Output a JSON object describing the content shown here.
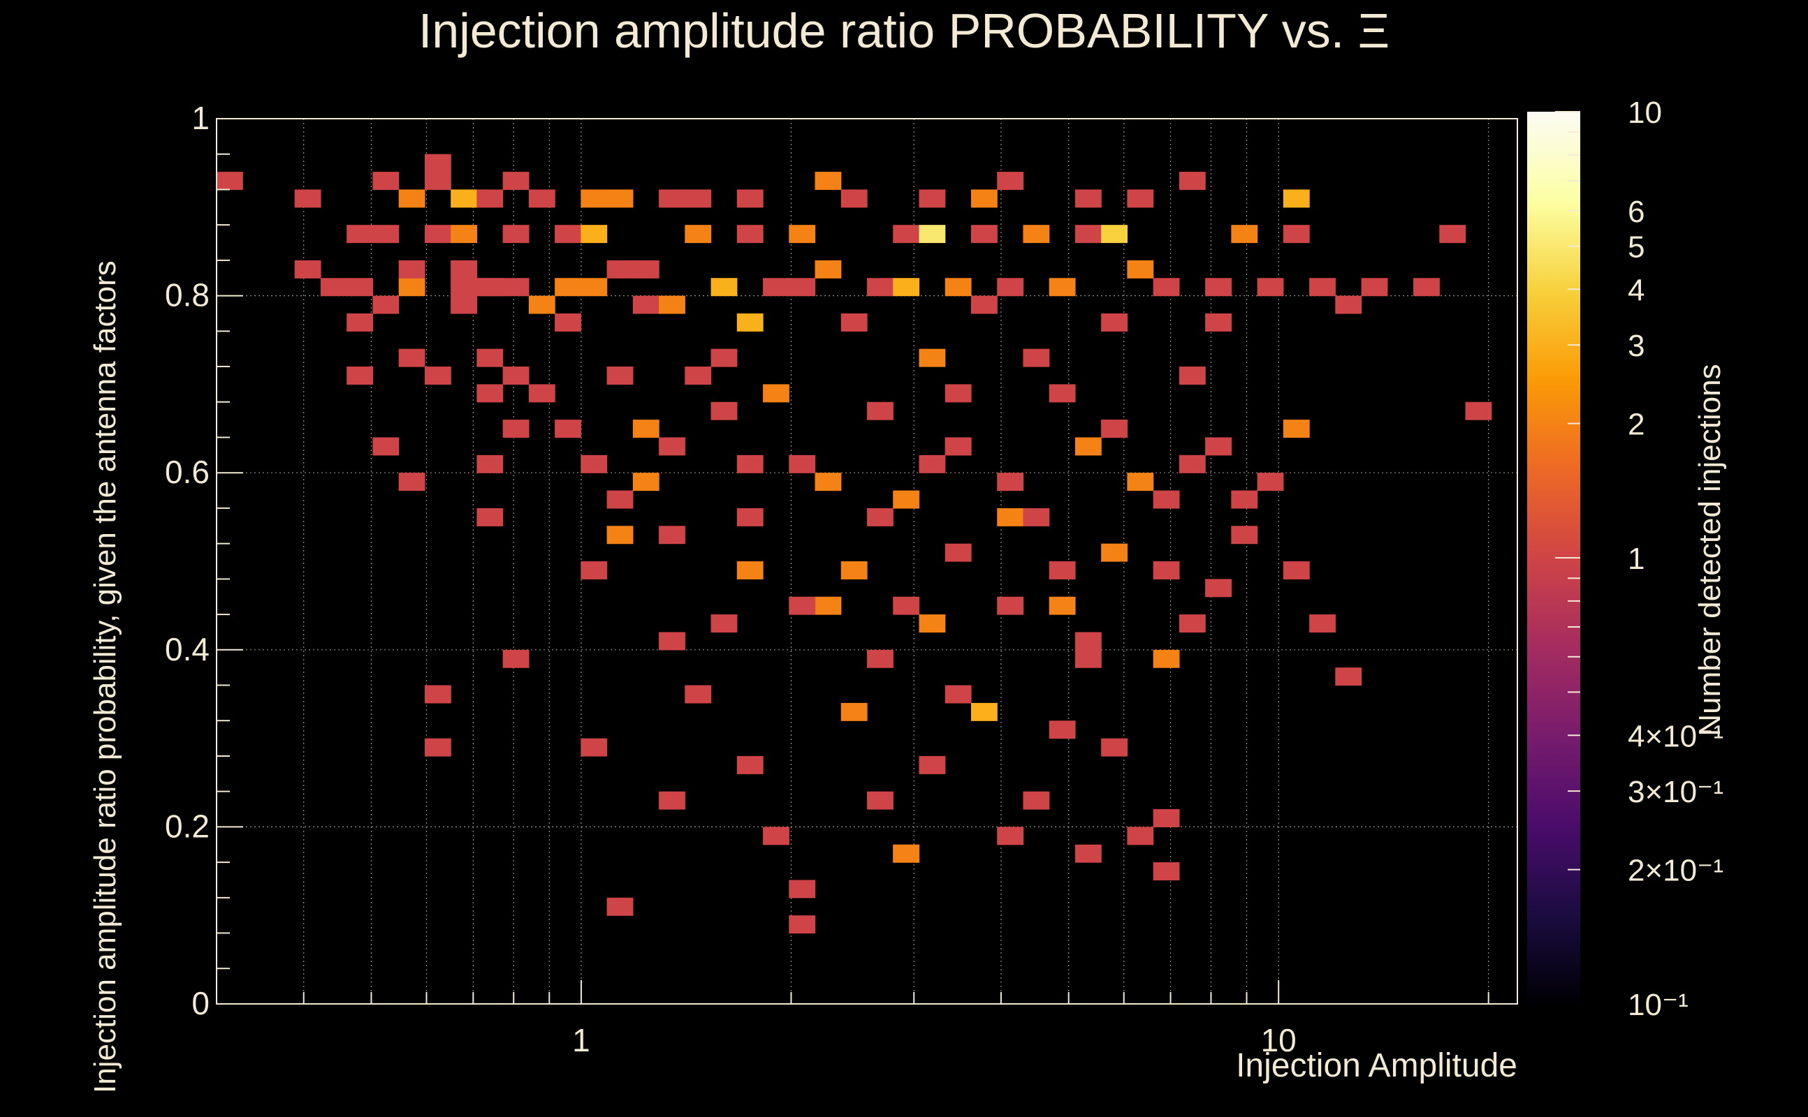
{
  "chart_data": {
    "type": "heatmap",
    "title": "Injection amplitude ratio PROBABILITY vs.  Ξ",
    "xlabel": "Injection Amplitude",
    "ylabel": "Injection amplitude ratio probability, given the antenna factors",
    "colorbar_label": "Number detected injections",
    "x_scale": "log",
    "x_range": [
      0.3,
      22
    ],
    "y_range": [
      0,
      1
    ],
    "x_tick_labels": [
      {
        "value": 1,
        "label": "1"
      },
      {
        "value": 10,
        "label": "10"
      }
    ],
    "y_tick_labels": [
      {
        "value": 0,
        "label": "0"
      },
      {
        "value": 0.2,
        "label": "0.2"
      },
      {
        "value": 0.4,
        "label": "0.4"
      },
      {
        "value": 0.6,
        "label": "0.6"
      },
      {
        "value": 0.8,
        "label": "0.8"
      },
      {
        "value": 1,
        "label": "1"
      }
    ],
    "z_scale": "log",
    "z_range": [
      0.1,
      10
    ],
    "z_tick_labels": [
      {
        "value": 10,
        "label": "10"
      },
      {
        "value": 6,
        "label": "6"
      },
      {
        "value": 5,
        "label": "5"
      },
      {
        "value": 4,
        "label": "4"
      },
      {
        "value": 3,
        "label": "3"
      },
      {
        "value": 2,
        "label": "2"
      },
      {
        "value": 1,
        "label": "1"
      },
      {
        "value": 0.4,
        "label": "4×10⁻¹"
      },
      {
        "value": 0.3,
        "label": "3×10⁻¹"
      },
      {
        "value": 0.2,
        "label": "2×10⁻¹"
      },
      {
        "value": 0.1,
        "label": "10⁻¹"
      }
    ],
    "grid": true,
    "colormap": [
      "#000004",
      "#1b0c41",
      "#4a0c6b",
      "#781c6d",
      "#a52c60",
      "#cf4446",
      "#ed6925",
      "#fb9b06",
      "#f7d13d",
      "#fcffa4",
      "#fcfbf4"
    ],
    "bin_count": {
      "x": 50,
      "y": 50
    },
    "bins": [
      [
        0.32,
        0.94,
        1
      ],
      [
        0.41,
        0.84,
        1
      ],
      [
        0.41,
        0.92,
        1
      ],
      [
        0.43,
        0.82,
        1
      ],
      [
        0.47,
        0.76,
        1
      ],
      [
        0.47,
        0.88,
        1
      ],
      [
        0.5,
        0.72,
        1
      ],
      [
        0.5,
        0.82,
        1
      ],
      [
        0.52,
        0.86,
        1
      ],
      [
        0.52,
        0.64,
        1
      ],
      [
        0.54,
        0.78,
        1
      ],
      [
        0.54,
        0.94,
        1
      ],
      [
        0.55,
        0.82,
        2
      ],
      [
        0.56,
        0.74,
        1
      ],
      [
        0.56,
        0.9,
        2
      ],
      [
        0.58,
        0.84,
        1
      ],
      [
        0.58,
        0.6,
        1
      ],
      [
        0.61,
        0.86,
        1
      ],
      [
        0.61,
        0.96,
        1
      ],
      [
        0.62,
        0.94,
        1
      ],
      [
        0.63,
        0.72,
        1
      ],
      [
        0.63,
        0.36,
        1
      ],
      [
        0.63,
        0.3,
        1
      ],
      [
        0.65,
        0.92,
        3
      ],
      [
        0.65,
        0.82,
        1
      ],
      [
        0.66,
        0.78,
        1
      ],
      [
        0.68,
        0.86,
        2
      ],
      [
        0.69,
        0.84,
        1
      ],
      [
        0.71,
        0.7,
        1
      ],
      [
        0.71,
        0.8,
        1
      ],
      [
        0.73,
        0.74,
        1
      ],
      [
        0.73,
        0.56,
        1
      ],
      [
        0.73,
        0.62,
        1
      ],
      [
        0.76,
        0.82,
        1
      ],
      [
        0.76,
        0.9,
        1
      ],
      [
        0.78,
        0.72,
        1
      ],
      [
        0.8,
        0.82,
        1
      ],
      [
        0.8,
        0.66,
        1
      ],
      [
        0.82,
        0.94,
        1
      ],
      [
        0.82,
        0.4,
        1
      ],
      [
        0.84,
        0.88,
        1
      ],
      [
        0.86,
        0.78,
        2
      ],
      [
        0.88,
        0.7,
        1
      ],
      [
        0.9,
        0.92,
        1
      ],
      [
        0.92,
        0.82,
        2
      ],
      [
        0.94,
        0.76,
        1
      ],
      [
        0.96,
        0.66,
        1
      ],
      [
        0.98,
        0.86,
        1
      ],
      [
        1.0,
        0.88,
        3
      ],
      [
        1.02,
        0.62,
        1
      ],
      [
        1.04,
        0.92,
        2
      ],
      [
        1.06,
        0.5,
        1
      ],
      [
        1.08,
        0.82,
        2
      ],
      [
        1.1,
        0.54,
        2
      ],
      [
        1.12,
        0.72,
        1
      ],
      [
        1.15,
        0.84,
        1
      ],
      [
        1.18,
        0.92,
        2
      ],
      [
        1.2,
        0.78,
        1
      ],
      [
        1.24,
        0.66,
        2
      ],
      [
        1.28,
        0.84,
        1
      ],
      [
        1.3,
        0.54,
        1
      ],
      [
        1.35,
        0.9,
        1
      ],
      [
        1.38,
        0.78,
        2
      ],
      [
        1.42,
        0.86,
        2
      ],
      [
        1.45,
        0.72,
        1
      ],
      [
        1.5,
        0.92,
        1
      ],
      [
        1.55,
        0.82,
        3
      ],
      [
        1.6,
        0.74,
        1
      ],
      [
        1.62,
        0.68,
        1
      ],
      [
        1.68,
        0.76,
        3
      ],
      [
        1.72,
        0.86,
        1
      ],
      [
        1.78,
        0.56,
        1
      ],
      [
        1.82,
        0.92,
        1
      ],
      [
        1.88,
        0.8,
        1
      ],
      [
        1.95,
        0.7,
        2
      ],
      [
        2.0,
        0.88,
        2
      ],
      [
        2.05,
        0.62,
        1
      ],
      [
        2.1,
        0.82,
        1
      ],
      [
        2.2,
        0.94,
        2
      ],
      [
        2.3,
        0.84,
        2
      ],
      [
        2.4,
        0.76,
        1
      ],
      [
        2.5,
        0.9,
        1
      ],
      [
        2.6,
        0.68,
        1
      ],
      [
        2.7,
        0.82,
        1
      ],
      [
        2.8,
        0.58,
        2
      ],
      [
        2.9,
        0.88,
        1
      ],
      [
        3.0,
        0.8,
        3
      ],
      [
        3.1,
        0.74,
        2
      ],
      [
        3.2,
        0.86,
        5
      ],
      [
        3.3,
        0.92,
        1
      ],
      [
        3.4,
        0.7,
        1
      ],
      [
        3.5,
        0.82,
        2
      ],
      [
        3.6,
        0.64,
        1
      ],
      [
        3.7,
        0.9,
        2
      ],
      [
        3.8,
        0.78,
        1
      ],
      [
        3.9,
        0.86,
        1
      ],
      [
        4.0,
        0.56,
        2
      ],
      [
        4.1,
        0.94,
        1
      ],
      [
        4.2,
        0.82,
        1
      ],
      [
        4.4,
        0.74,
        1
      ],
      [
        4.6,
        0.88,
        2
      ],
      [
        4.8,
        0.8,
        2
      ],
      [
        5.0,
        0.7,
        1
      ],
      [
        5.2,
        0.86,
        1
      ],
      [
        5.4,
        0.92,
        1
      ],
      [
        5.6,
        0.66,
        1
      ],
      [
        5.8,
        0.88,
        4
      ],
      [
        6.0,
        0.76,
        1
      ],
      [
        6.3,
        0.84,
        2
      ],
      [
        6.6,
        0.9,
        1
      ],
      [
        7.0,
        0.8,
        1
      ],
      [
        7.3,
        0.72,
        1
      ],
      [
        7.6,
        0.94,
        1
      ],
      [
        8.0,
        0.82,
        1
      ],
      [
        8.5,
        0.76,
        1
      ],
      [
        9.0,
        0.88,
        2
      ],
      [
        9.5,
        0.8,
        1
      ],
      [
        10.2,
        0.9,
        3
      ],
      [
        10.8,
        0.86,
        1
      ],
      [
        11.5,
        0.82,
        1
      ],
      [
        12.5,
        0.78,
        1
      ],
      [
        14.0,
        0.82,
        1
      ],
      [
        16.0,
        0.82,
        1
      ],
      [
        18.0,
        0.86,
        1
      ],
      [
        20.0,
        0.68,
        1
      ],
      [
        1.0,
        0.3,
        1
      ],
      [
        1.1,
        0.12,
        1
      ],
      [
        1.3,
        0.24,
        1
      ],
      [
        1.5,
        0.36,
        1
      ],
      [
        1.7,
        0.28,
        1
      ],
      [
        1.9,
        0.2,
        1
      ],
      [
        2.0,
        0.14,
        1
      ],
      [
        2.0,
        0.1,
        1
      ],
      [
        2.2,
        0.46,
        2
      ],
      [
        2.5,
        0.34,
        2
      ],
      [
        2.6,
        0.24,
        1
      ],
      [
        2.8,
        0.18,
        1
      ],
      [
        3.0,
        0.18,
        2
      ],
      [
        3.2,
        0.28,
        1
      ],
      [
        3.5,
        0.36,
        1
      ],
      [
        3.8,
        0.34,
        3
      ],
      [
        4.0,
        0.2,
        1
      ],
      [
        4.5,
        0.24,
        1
      ],
      [
        5.0,
        0.32,
        1
      ],
      [
        5.5,
        0.18,
        1
      ],
      [
        6.0,
        0.3,
        1
      ],
      [
        6.5,
        0.2,
        1
      ],
      [
        7.0,
        0.22,
        1
      ],
      [
        7.2,
        0.16,
        1
      ],
      [
        5.0,
        0.46,
        2
      ],
      [
        5.5,
        0.42,
        1
      ],
      [
        6.0,
        0.52,
        2
      ],
      [
        6.8,
        0.5,
        1
      ],
      [
        7.2,
        0.4,
        2
      ],
      [
        7.5,
        0.44,
        1
      ],
      [
        8.5,
        0.48,
        1
      ],
      [
        9.0,
        0.54,
        1
      ],
      [
        10.0,
        0.6,
        1
      ],
      [
        11.0,
        0.5,
        1
      ],
      [
        12.0,
        0.44,
        1
      ],
      [
        13.0,
        0.38,
        1
      ],
      [
        1.4,
        0.42,
        1
      ],
      [
        1.6,
        0.44,
        1
      ],
      [
        1.8,
        0.5,
        2
      ],
      [
        2.1,
        0.46,
        1
      ],
      [
        2.4,
        0.5,
        2
      ],
      [
        2.7,
        0.4,
        1
      ],
      [
        3.0,
        0.46,
        1
      ],
      [
        3.3,
        0.44,
        2
      ],
      [
        3.6,
        0.52,
        1
      ],
      [
        4.2,
        0.46,
        1
      ],
      [
        4.8,
        0.5,
        1
      ],
      [
        5.2,
        0.4,
        1
      ],
      [
        6.2,
        0.6,
        2
      ],
      [
        6.8,
        0.58,
        1
      ],
      [
        7.4,
        0.62,
        1
      ],
      [
        8.2,
        0.64,
        1
      ],
      [
        9.0,
        0.58,
        1
      ],
      [
        11.0,
        0.66,
        2
      ],
      [
        1.1,
        0.58,
        1
      ],
      [
        1.2,
        0.6,
        2
      ],
      [
        1.4,
        0.64,
        1
      ],
      [
        1.7,
        0.62,
        1
      ],
      [
        2.3,
        0.6,
        2
      ],
      [
        2.6,
        0.56,
        1
      ],
      [
        3.1,
        0.62,
        1
      ],
      [
        3.6,
        0.64,
        1
      ],
      [
        4.1,
        0.6,
        1
      ],
      [
        4.6,
        0.56,
        1
      ],
      [
        5.2,
        0.64,
        2
      ],
      [
        5.8,
        0.66,
        1
      ]
    ]
  }
}
